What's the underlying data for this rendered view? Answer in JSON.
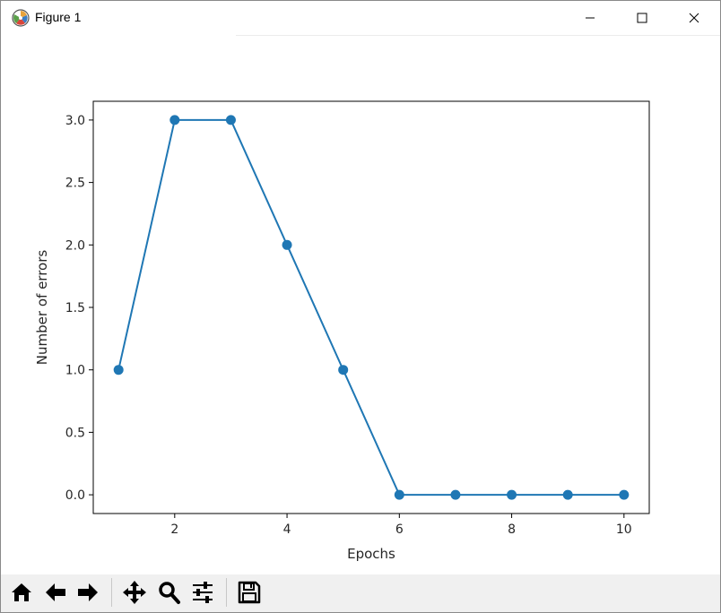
{
  "window": {
    "title": "Figure 1"
  },
  "icons": {
    "app": "matplotlib-logo-icon",
    "minimize": "minimize-icon",
    "maximize": "maximize-icon",
    "close": "close-icon"
  },
  "toolbar": {
    "buttons": [
      "home-icon",
      "back-arrow-icon",
      "forward-arrow-icon",
      "pan-icon",
      "zoom-icon",
      "configure-subplots-icon",
      "save-icon"
    ]
  },
  "chart_data": {
    "type": "line",
    "x": [
      1,
      2,
      3,
      4,
      5,
      6,
      7,
      8,
      9,
      10
    ],
    "series": [
      {
        "values": [
          1,
          3,
          3,
          2,
          1,
          0,
          0,
          0,
          0,
          0
        ],
        "color": "#1f77b4",
        "marker": "circle"
      }
    ],
    "title": "",
    "xlabel": "Epochs",
    "ylabel": "Number of errors",
    "xlim": [
      0.55,
      10.45
    ],
    "ylim": [
      -0.15,
      3.15
    ],
    "xticks": [
      2,
      4,
      6,
      8,
      10
    ],
    "xtick_labels": [
      "2",
      "4",
      "6",
      "8",
      "10"
    ],
    "yticks": [
      0.0,
      0.5,
      1.0,
      1.5,
      2.0,
      2.5,
      3.0
    ],
    "ytick_labels": [
      "0.0",
      "0.5",
      "1.0",
      "1.5",
      "2.0",
      "2.5",
      "3.0"
    ],
    "grid": false,
    "legend": false
  }
}
